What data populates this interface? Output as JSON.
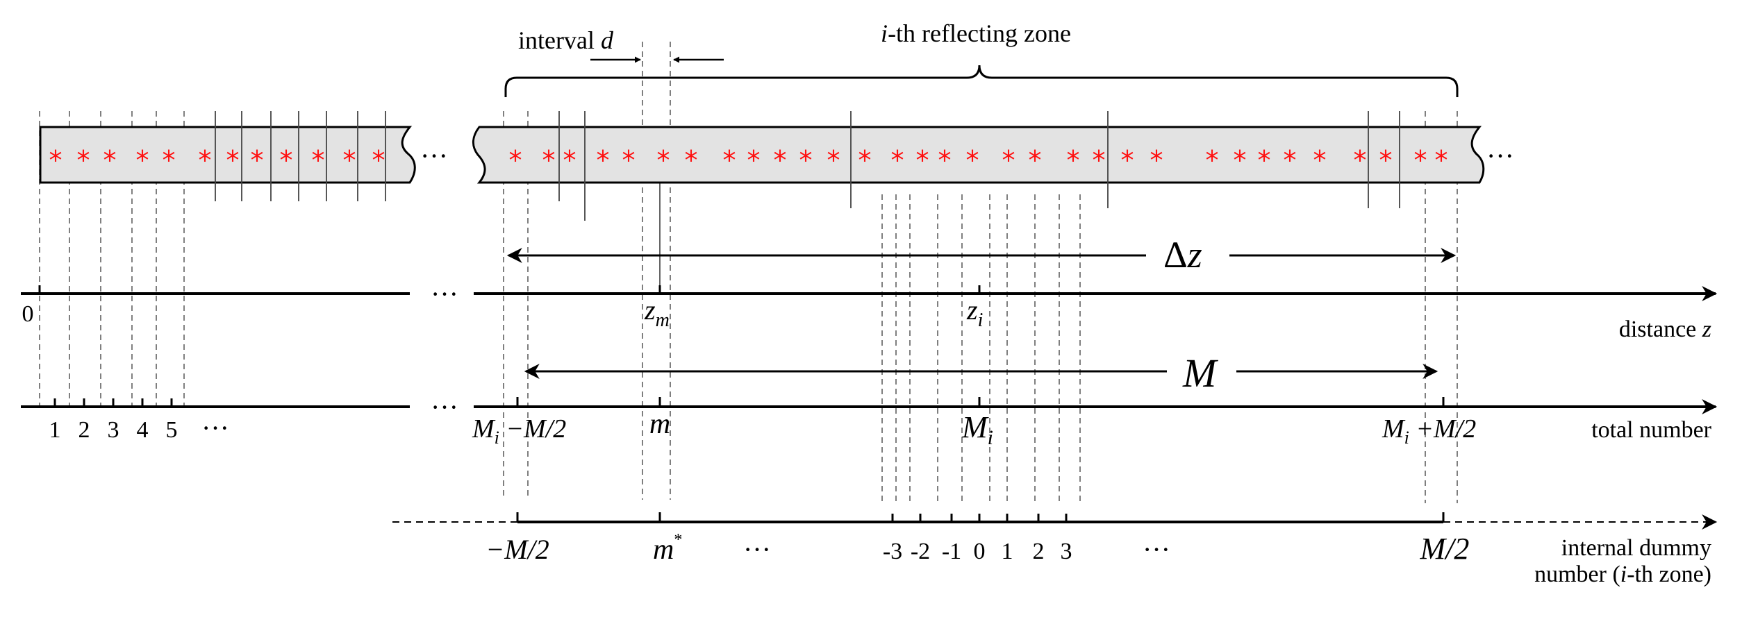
{
  "labels": {
    "interval_prefix": "interval ",
    "interval_d": "d",
    "zone_i": "i",
    "zone_suffix": "-th reflecting zone",
    "zero": "0",
    "dots": "···",
    "delta": "Δ",
    "z": "z",
    "zm_base": "z",
    "zm_sub": "m",
    "zi_base": "z",
    "zi_sub": "i",
    "distance_prefix": "distance ",
    "M": "M",
    "m": "m",
    "Mi_base": "M",
    "Mi_sub": "i",
    "left_minus": " −M/2",
    "right_plus": " +M/2",
    "total_number": "total number",
    "neg_half": "−M/2",
    "m_star": "m",
    "star": "*",
    "pos_half": "M/2",
    "dummy_line1": "internal dummy",
    "dummy_line2_prefix": "number (",
    "dummy_line2_suffix": "-th zone)"
  },
  "total_ticks": [
    "1",
    "2",
    "3",
    "4",
    "5"
  ],
  "dummy_ticks": [
    "-3",
    "-2",
    "-1",
    "0",
    "1",
    "2",
    "3"
  ],
  "colors": {
    "grating": "#e0e0e0",
    "star": "#ff1111",
    "line": "#000000"
  }
}
